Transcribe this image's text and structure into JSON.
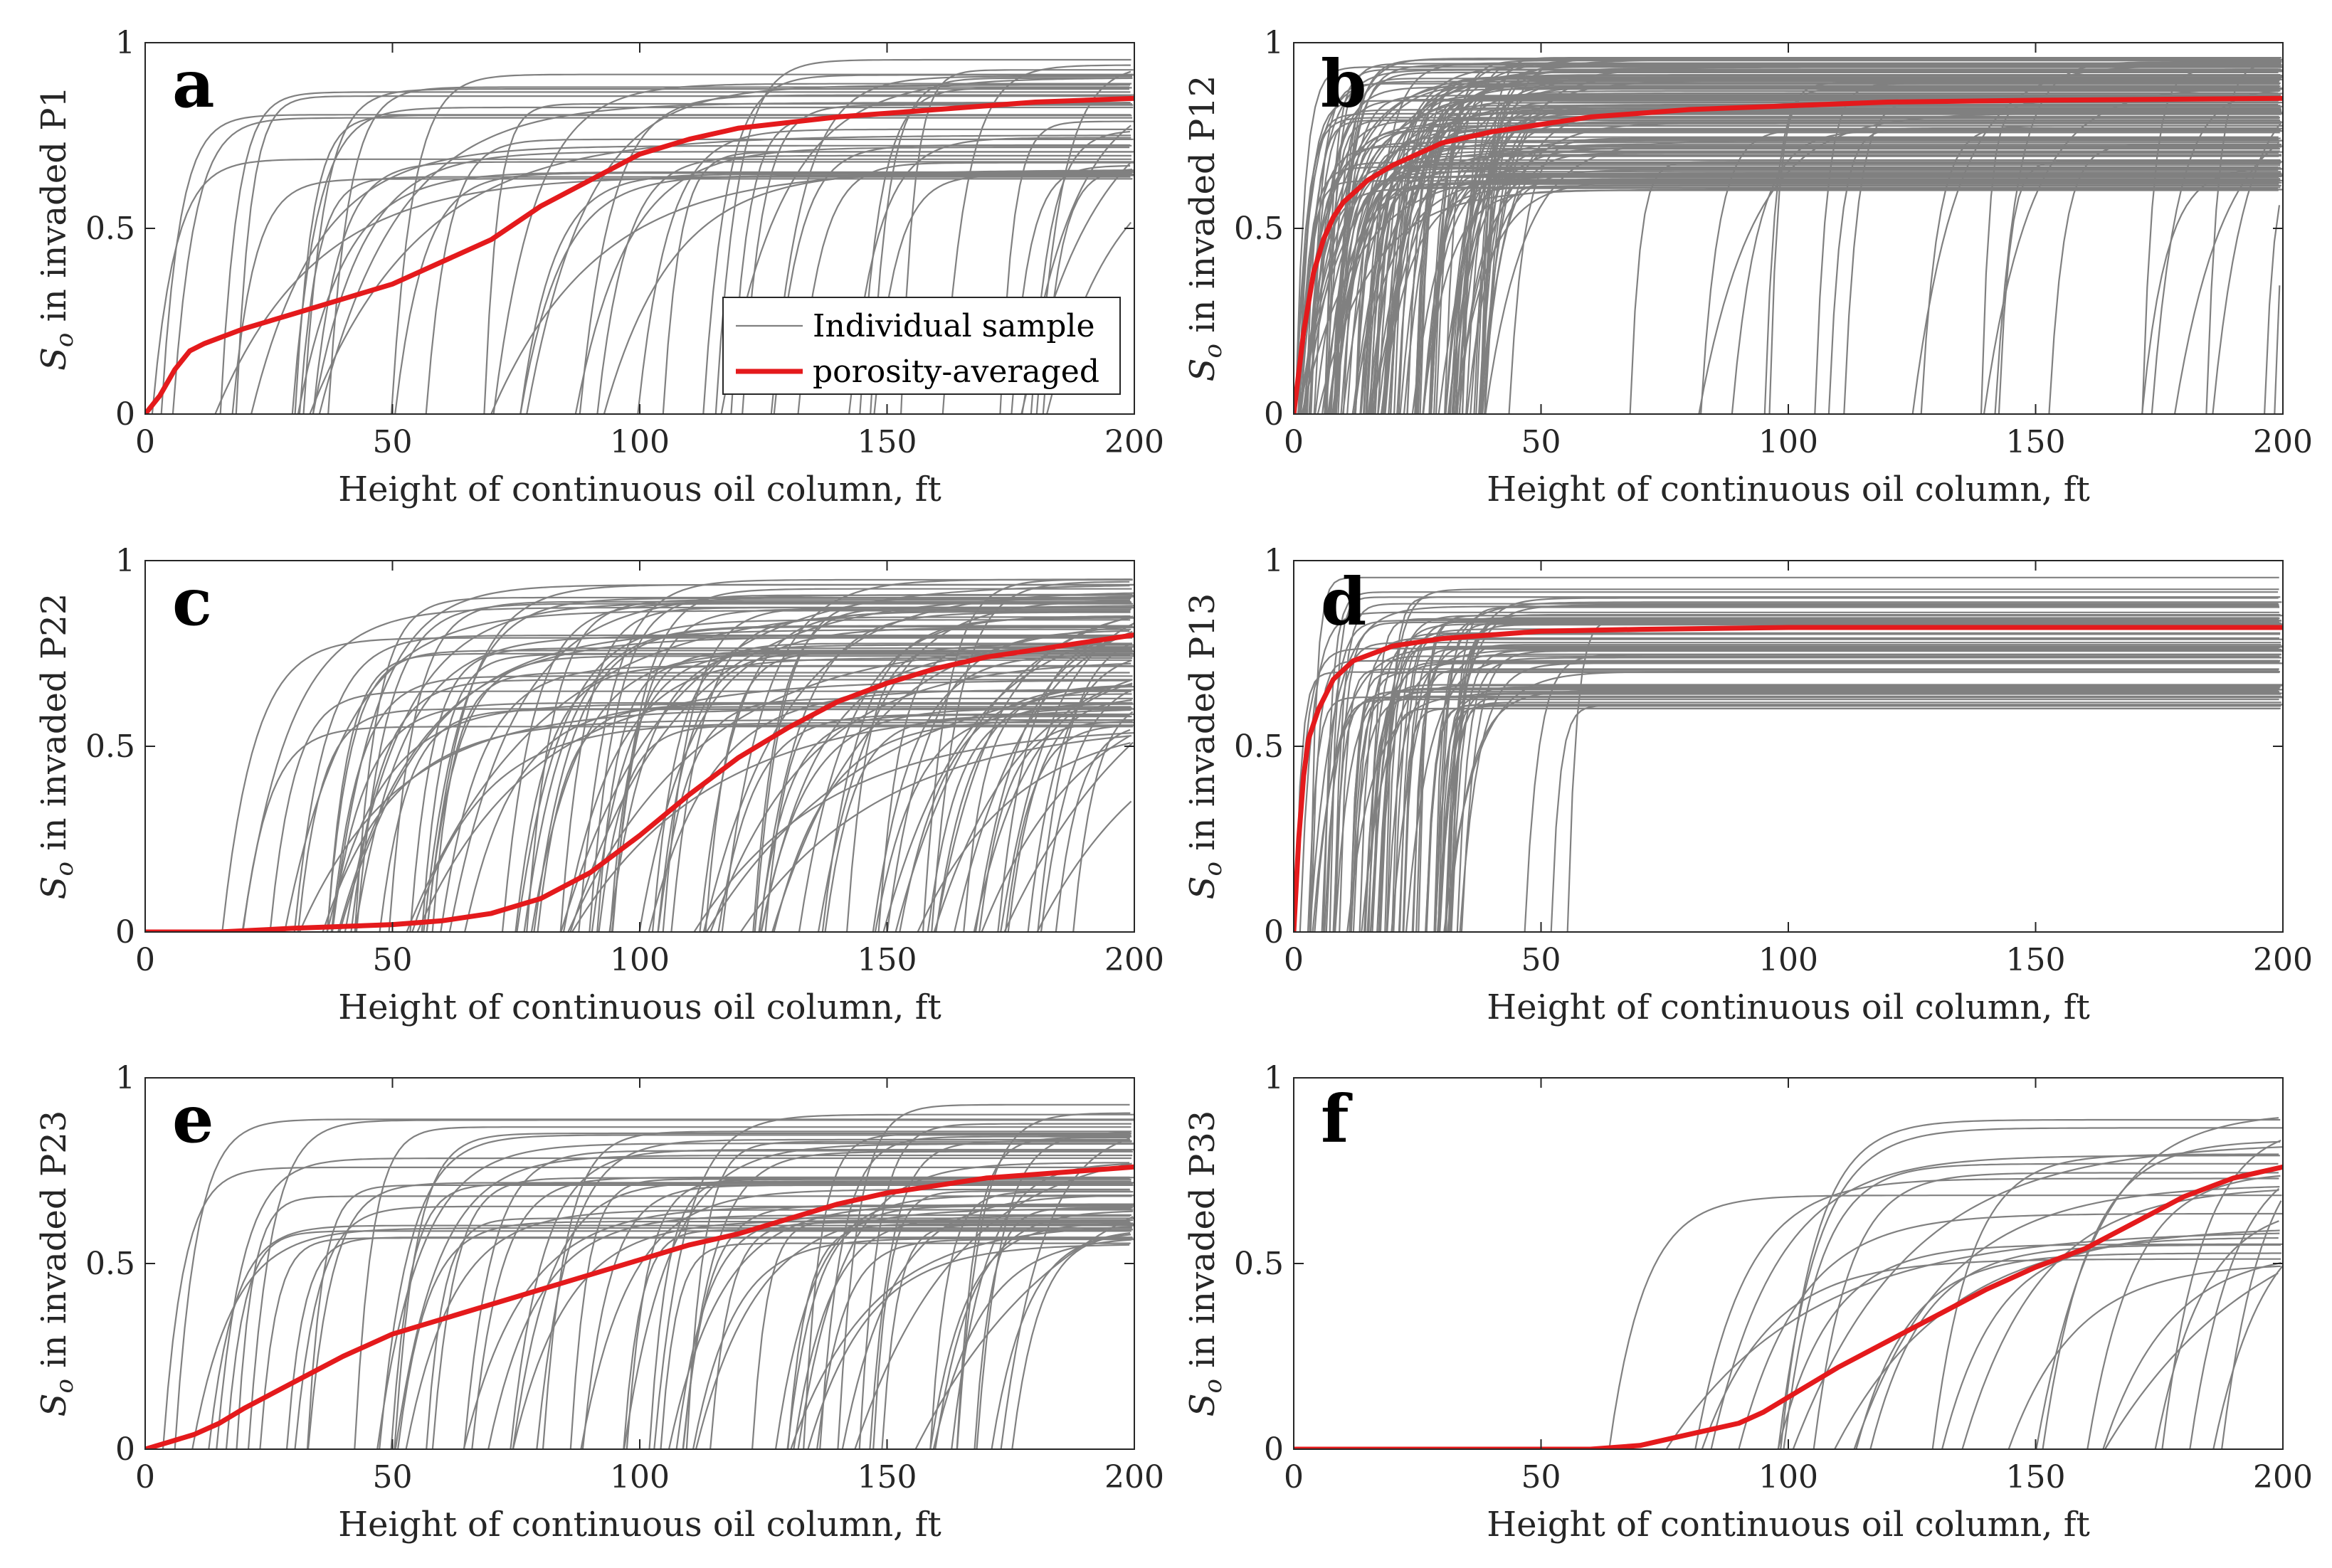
{
  "chart_data": [
    {
      "type": "line",
      "panel_label": "a",
      "ylabel_symbol": "S",
      "ylabel_sub": "o",
      "ylabel_rest": " in invaded P1",
      "xlabel": "Height of continuous oil column, ft",
      "xlim": [
        0,
        200
      ],
      "ylim": [
        0,
        1
      ],
      "xticks": [
        "0",
        "50",
        "100",
        "150",
        "200"
      ],
      "yticks": [
        "0",
        "0.5",
        "1"
      ],
      "legend": {
        "position": "lower-right",
        "entries": [
          "Individual sample",
          "porosity-averaged"
        ]
      },
      "samples": {
        "name": "Individual sample",
        "count": 55,
        "onset_range": [
          0,
          185
        ],
        "plateau_range": [
          0.62,
          0.96
        ],
        "rate_range": [
          0.04,
          0.4
        ]
      },
      "series": [
        {
          "name": "porosity-averaged",
          "x": [
            0,
            3,
            6,
            9,
            12,
            20,
            30,
            40,
            50,
            60,
            70,
            80,
            90,
            100,
            110,
            120,
            140,
            160,
            180,
            200
          ],
          "values": [
            0,
            0.05,
            0.12,
            0.17,
            0.19,
            0.23,
            0.27,
            0.31,
            0.35,
            0.41,
            0.47,
            0.56,
            0.63,
            0.7,
            0.74,
            0.77,
            0.8,
            0.82,
            0.84,
            0.85
          ]
        }
      ]
    },
    {
      "type": "line",
      "panel_label": "b",
      "ylabel_symbol": "S",
      "ylabel_sub": "o",
      "ylabel_rest": " in invaded P12",
      "xlabel": "Height of continuous oil column, ft",
      "xlim": [
        0,
        200
      ],
      "ylim": [
        0,
        1
      ],
      "xticks": [
        "0",
        "50",
        "100",
        "150",
        "200"
      ],
      "yticks": [
        "0",
        "0.5",
        "1"
      ],
      "samples": {
        "name": "Individual sample",
        "count": 150,
        "onset_range": [
          0,
          40
        ],
        "plateau_range": [
          0.6,
          0.96
        ],
        "rate_range": [
          0.08,
          0.6
        ],
        "late_count": 25,
        "late_onset_range": [
          40,
          200
        ]
      },
      "series": [
        {
          "name": "porosity-averaged",
          "x": [
            0,
            2,
            4,
            6,
            8,
            10,
            15,
            20,
            30,
            40,
            60,
            80,
            100,
            120,
            150,
            200
          ],
          "values": [
            0,
            0.22,
            0.38,
            0.47,
            0.53,
            0.57,
            0.63,
            0.67,
            0.73,
            0.76,
            0.8,
            0.82,
            0.83,
            0.84,
            0.845,
            0.85
          ]
        }
      ]
    },
    {
      "type": "line",
      "panel_label": "c",
      "ylabel_symbol": "S",
      "ylabel_sub": "o",
      "ylabel_rest": " in invaded P22",
      "xlabel": "Height of continuous oil column, ft",
      "xlim": [
        0,
        200
      ],
      "ylim": [
        0,
        1
      ],
      "xticks": [
        "0",
        "50",
        "100",
        "150",
        "200"
      ],
      "yticks": [
        "0",
        "0.5",
        "1"
      ],
      "samples": {
        "name": "Individual sample",
        "count": 120,
        "onset_range": [
          15,
          190
        ],
        "plateau_range": [
          0.55,
          0.96
        ],
        "rate_range": [
          0.03,
          0.25
        ]
      },
      "series": [
        {
          "name": "porosity-averaged",
          "x": [
            0,
            15,
            30,
            50,
            60,
            70,
            80,
            90,
            100,
            110,
            120,
            130,
            140,
            150,
            160,
            170,
            180,
            190,
            200
          ],
          "values": [
            0,
            0,
            0.01,
            0.02,
            0.03,
            0.05,
            0.09,
            0.16,
            0.26,
            0.37,
            0.47,
            0.55,
            0.62,
            0.67,
            0.71,
            0.74,
            0.76,
            0.78,
            0.8
          ]
        }
      ]
    },
    {
      "type": "line",
      "panel_label": "d",
      "ylabel_symbol": "S",
      "ylabel_sub": "o",
      "ylabel_rest": " in invaded P13",
      "xlabel": "Height of continuous oil column, ft",
      "xlim": [
        0,
        200
      ],
      "ylim": [
        0,
        1
      ],
      "xticks": [
        "0",
        "50",
        "100",
        "150",
        "200"
      ],
      "yticks": [
        "0",
        "0.5",
        "1"
      ],
      "samples": {
        "name": "Individual sample",
        "count": 80,
        "onset_range": [
          0,
          35
        ],
        "plateau_range": [
          0.6,
          0.96
        ],
        "rate_range": [
          0.15,
          0.9
        ],
        "late_count": 3,
        "late_onset_range": [
          40,
          60
        ]
      },
      "series": [
        {
          "name": "porosity-averaged",
          "x": [
            0,
            1,
            2,
            3,
            5,
            8,
            12,
            20,
            30,
            50,
            70,
            100,
            150,
            200
          ],
          "values": [
            0,
            0.25,
            0.42,
            0.52,
            0.6,
            0.68,
            0.73,
            0.77,
            0.79,
            0.81,
            0.815,
            0.82,
            0.82,
            0.82
          ]
        }
      ]
    },
    {
      "type": "line",
      "panel_label": "e",
      "ylabel_symbol": "S",
      "ylabel_sub": "o",
      "ylabel_rest": " in invaded P23",
      "xlabel": "Height of continuous oil column, ft",
      "xlim": [
        0,
        200
      ],
      "ylim": [
        0,
        1
      ],
      "xticks": [
        "0",
        "50",
        "100",
        "150",
        "200"
      ],
      "yticks": [
        "0",
        "0.5",
        "1"
      ],
      "samples": {
        "name": "Individual sample",
        "count": 80,
        "onset_range": [
          2,
          190
        ],
        "plateau_range": [
          0.55,
          0.93
        ],
        "rate_range": [
          0.03,
          0.35
        ]
      },
      "series": [
        {
          "name": "porosity-averaged",
          "x": [
            0,
            5,
            10,
            15,
            20,
            30,
            40,
            50,
            60,
            70,
            80,
            90,
            100,
            110,
            120,
            130,
            140,
            150,
            160,
            170,
            180,
            190,
            200
          ],
          "values": [
            0,
            0.02,
            0.04,
            0.07,
            0.11,
            0.18,
            0.25,
            0.31,
            0.35,
            0.39,
            0.43,
            0.47,
            0.51,
            0.55,
            0.58,
            0.62,
            0.66,
            0.69,
            0.71,
            0.73,
            0.74,
            0.75,
            0.76
          ]
        }
      ]
    },
    {
      "type": "line",
      "panel_label": "f",
      "ylabel_symbol": "S",
      "ylabel_sub": "o",
      "ylabel_rest": " in invaded P33",
      "xlabel": "Height of continuous oil column, ft",
      "xlim": [
        0,
        200
      ],
      "ylim": [
        0,
        1
      ],
      "xticks": [
        "0",
        "50",
        "100",
        "150",
        "200"
      ],
      "yticks": [
        "0",
        "0.5",
        "1"
      ],
      "samples": {
        "name": "Individual sample",
        "count": 30,
        "onset_range": [
          60,
          190
        ],
        "plateau_range": [
          0.5,
          0.92
        ],
        "rate_range": [
          0.03,
          0.15
        ]
      },
      "series": [
        {
          "name": "porosity-averaged",
          "x": [
            0,
            50,
            60,
            70,
            80,
            90,
            95,
            100,
            110,
            120,
            130,
            140,
            150,
            160,
            170,
            180,
            190,
            200
          ],
          "values": [
            0,
            0,
            0,
            0.01,
            0.04,
            0.07,
            0.1,
            0.14,
            0.22,
            0.29,
            0.36,
            0.43,
            0.49,
            0.54,
            0.61,
            0.68,
            0.73,
            0.76
          ]
        }
      ]
    }
  ],
  "colors": {
    "sample": "#808080",
    "average": "#e41a1c",
    "axis": "#262626"
  }
}
